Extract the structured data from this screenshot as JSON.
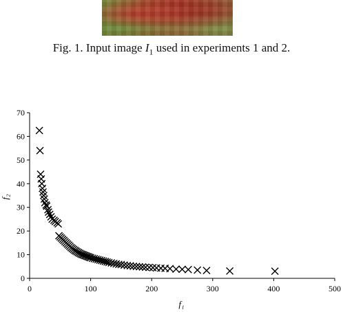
{
  "figure": {
    "caption_prefix": "Fig. 1.",
    "caption_text_before": "Input image",
    "caption_var": "I",
    "caption_sub": "1",
    "caption_text_after": "used in experiments 1 and 2."
  },
  "chart_data": {
    "type": "scatter",
    "xlabel": "f₁",
    "ylabel": "f₂",
    "xlim": [
      0,
      500
    ],
    "ylim": [
      0,
      70
    ],
    "xticks": [
      0,
      100,
      200,
      300,
      400,
      500
    ],
    "yticks": [
      0,
      10,
      20,
      30,
      40,
      50,
      60,
      70
    ],
    "marker": "x",
    "grid": false,
    "series": [
      {
        "color": "#000000",
        "points": [
          [
            16,
            62.5
          ],
          [
            17,
            54
          ],
          [
            18,
            44
          ],
          [
            19,
            42
          ],
          [
            20,
            40
          ],
          [
            21,
            38
          ],
          [
            22,
            36.5
          ],
          [
            23,
            35
          ],
          [
            24,
            33.5
          ],
          [
            25,
            32
          ],
          [
            27,
            31
          ],
          [
            28,
            30.5
          ],
          [
            30,
            29
          ],
          [
            31,
            28
          ],
          [
            33,
            27
          ],
          [
            35,
            26
          ],
          [
            37,
            25
          ],
          [
            40,
            24.5
          ],
          [
            42,
            24
          ],
          [
            45,
            23.5
          ],
          [
            47,
            23
          ],
          [
            48,
            18
          ],
          [
            50,
            17.5
          ],
          [
            52,
            17
          ],
          [
            54,
            16.5
          ],
          [
            56,
            16
          ],
          [
            58,
            15.5
          ],
          [
            60,
            15
          ],
          [
            62,
            14.5
          ],
          [
            64,
            14
          ],
          [
            66,
            13.5
          ],
          [
            68,
            13
          ],
          [
            70,
            12.6
          ],
          [
            72,
            12.2
          ],
          [
            74,
            11.8
          ],
          [
            76,
            11.5
          ],
          [
            78,
            11.2
          ],
          [
            80,
            10.9
          ],
          [
            82,
            10.6
          ],
          [
            84,
            10.3
          ],
          [
            86,
            10.1
          ],
          [
            88,
            9.9
          ],
          [
            90,
            9.7
          ],
          [
            92,
            9.5
          ],
          [
            94,
            9.3
          ],
          [
            96,
            9.1
          ],
          [
            98,
            8.9
          ],
          [
            100,
            8.7
          ],
          [
            103,
            8.5
          ],
          [
            106,
            8.3
          ],
          [
            109,
            8.1
          ],
          [
            112,
            7.9
          ],
          [
            115,
            7.7
          ],
          [
            118,
            7.5
          ],
          [
            121,
            7.3
          ],
          [
            124,
            7.1
          ],
          [
            127,
            6.9
          ],
          [
            130,
            6.7
          ],
          [
            134,
            6.5
          ],
          [
            138,
            6.3
          ],
          [
            142,
            6.1
          ],
          [
            146,
            5.9
          ],
          [
            150,
            5.8
          ],
          [
            155,
            5.6
          ],
          [
            160,
            5.4
          ],
          [
            165,
            5.3
          ],
          [
            170,
            5.1
          ],
          [
            175,
            5.0
          ],
          [
            180,
            4.9
          ],
          [
            185,
            4.8
          ],
          [
            190,
            4.7
          ],
          [
            196,
            4.6
          ],
          [
            202,
            4.5
          ],
          [
            208,
            4.4
          ],
          [
            215,
            4.3
          ],
          [
            222,
            4.2
          ],
          [
            230,
            4.1
          ],
          [
            240,
            3.9
          ],
          [
            250,
            3.8
          ],
          [
            260,
            3.7
          ],
          [
            275,
            3.5
          ],
          [
            290,
            3.3
          ],
          [
            328,
            3.1
          ],
          [
            402,
            3.0
          ]
        ]
      }
    ]
  }
}
